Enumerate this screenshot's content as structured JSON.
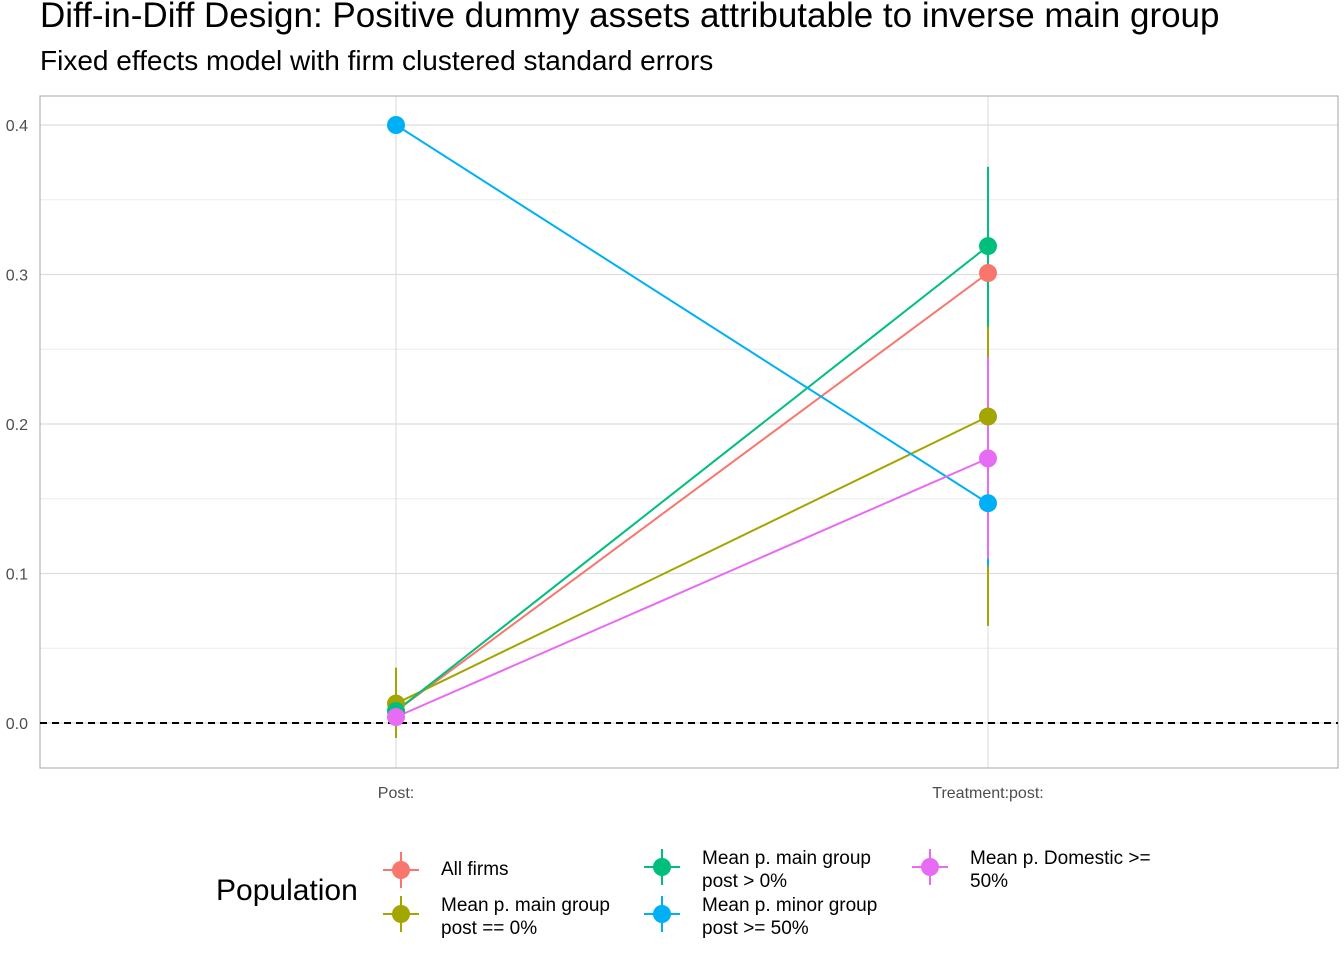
{
  "title": "Diff-in-Diff Design: Positive dummy assets attributable to inverse main group",
  "subtitle": "Fixed effects model with firm clustered standard errors",
  "legend": {
    "title": "Population"
  },
  "chart_data": {
    "type": "scatter",
    "categories": [
      "Post:",
      "Treatment:post:"
    ],
    "ylim": [
      -0.03,
      0.42
    ],
    "yticks": [
      0.0,
      0.1,
      0.2,
      0.3,
      0.4
    ],
    "ytick_labels": [
      "0.0",
      "0.1",
      "0.2",
      "0.3",
      "0.4"
    ],
    "reference_line": 0,
    "grid": true,
    "legend_position": "bottom",
    "series": [
      {
        "name": "All firms",
        "color": "#F8766D",
        "values": [
          0.008,
          0.301
        ],
        "ci_low": [
          0.001,
          0.251
        ],
        "ci_high": [
          0.015,
          0.351
        ]
      },
      {
        "name": "Mean p. main group\npost == 0%",
        "color": "#A3A500",
        "values": [
          0.013,
          0.205
        ],
        "ci_low": [
          -0.01,
          0.065
        ],
        "ci_high": [
          0.037,
          0.265
        ]
      },
      {
        "name": "Mean p. main group\npost > 0%",
        "color": "#00BF7D",
        "values": [
          0.008,
          0.319
        ],
        "ci_low": [
          0.002,
          0.265
        ],
        "ci_high": [
          0.014,
          0.372
        ]
      },
      {
        "name": "Mean p. minor group\npost >= 50%",
        "color": "#00B0F6",
        "values": [
          0.4,
          0.147
        ],
        "ci_low": [
          0.395,
          0.105
        ],
        "ci_high": [
          0.405,
          0.19
        ]
      },
      {
        "name": "Mean p. Domestic >=\n50%",
        "color": "#E76BF3",
        "values": [
          0.004,
          0.177
        ],
        "ci_low": [
          0.0,
          0.11
        ],
        "ci_high": [
          0.009,
          0.245
        ]
      }
    ]
  }
}
